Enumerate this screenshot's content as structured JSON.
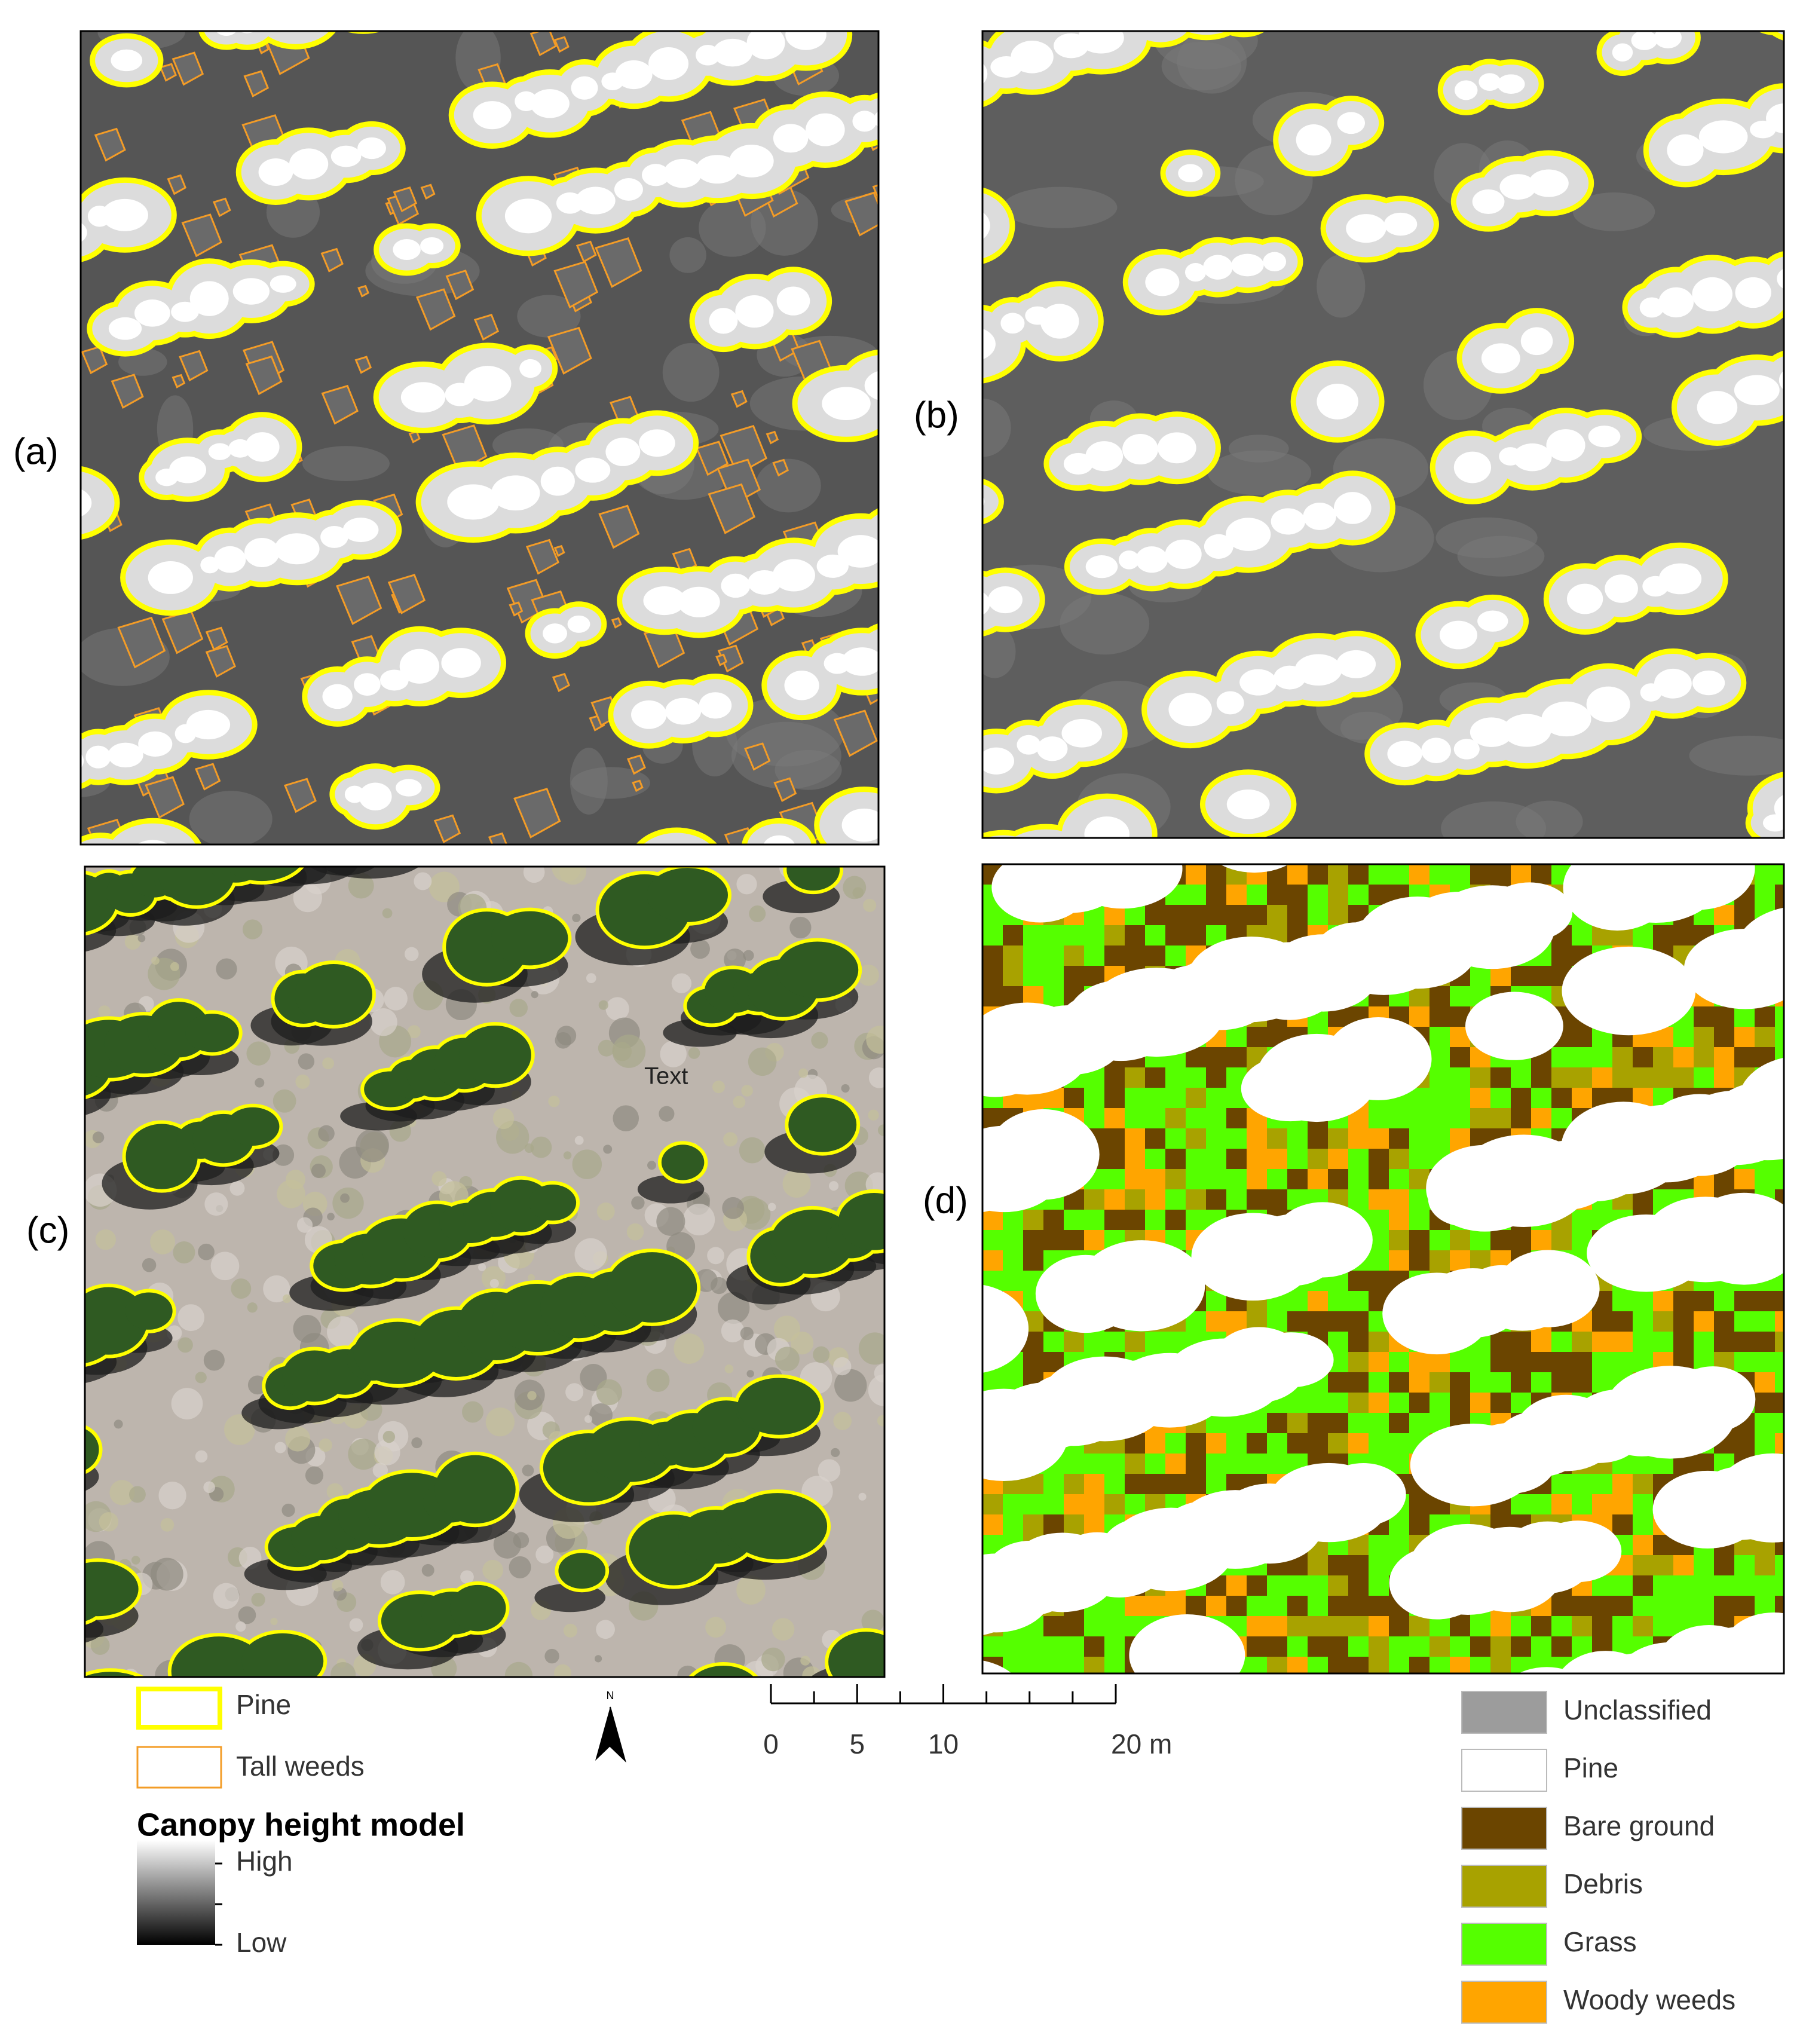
{
  "panels": [
    {
      "label": "(a)"
    },
    {
      "label": "(b)"
    },
    {
      "label": "(c)"
    },
    {
      "label": "(d)"
    }
  ],
  "annotation": "Text",
  "legend_left": {
    "items": [
      {
        "label": "Pine",
        "color": "#ffff00"
      },
      {
        "label": "Tall weeds",
        "color": "#f39c27"
      }
    ],
    "ramp_title": "Canopy height model",
    "high": "High",
    "low": "Low"
  },
  "north": "N",
  "scale_bar": {
    "xlim": [
      0,
      20
    ],
    "ticks": [
      0,
      5,
      10,
      {
        "value": 20,
        "label": "20 m"
      }
    ],
    "minor_ticks": [
      2.5,
      7.5,
      12.5,
      15,
      17.5
    ]
  },
  "legend_right": {
    "items": [
      {
        "label": "Unclassified",
        "color": "#9c9c9c"
      },
      {
        "label": "Pine",
        "color": "#ffffff"
      },
      {
        "label": "Bare ground",
        "color": "#6b4500"
      },
      {
        "label": "Debris",
        "color": "#a8a200"
      },
      {
        "label": "Grass",
        "color": "#55ff00"
      },
      {
        "label": "Woody weeds",
        "color": "#ffa500"
      }
    ]
  }
}
